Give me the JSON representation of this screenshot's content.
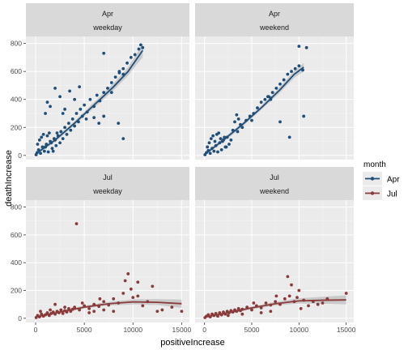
{
  "chart_data": {
    "type": "scatter",
    "xlabel": "positiveIncrease",
    "ylabel": "deathIncrease",
    "xlim": [
      -1000,
      15800
    ],
    "ylim": [
      -30,
      850
    ],
    "x_ticks": [
      0,
      5000,
      10000,
      15000
    ],
    "x_tick_labels": [
      "0",
      "5000",
      "10000",
      "15000"
    ],
    "y_ticks": [
      0,
      200,
      400,
      600,
      800
    ],
    "y_tick_labels": [
      "0",
      "200",
      "400",
      "600",
      "800"
    ],
    "grid": true,
    "legend": {
      "title": "month",
      "position": "right",
      "entries": [
        {
          "label": "Apr",
          "color": "#1f4e79"
        },
        {
          "label": "Jul",
          "color": "#8b3a3a"
        }
      ]
    },
    "panels": [
      {
        "strip_top": "Apr",
        "strip_bottom": "weekday",
        "month": "Apr",
        "color": "#1f4e79",
        "points": [
          [
            50,
            5
          ],
          [
            150,
            20
          ],
          [
            300,
            40
          ],
          [
            500,
            15
          ],
          [
            700,
            60
          ],
          [
            900,
            30
          ],
          [
            1100,
            80
          ],
          [
            1300,
            25
          ],
          [
            1500,
            100
          ],
          [
            1700,
            50
          ],
          [
            1900,
            120
          ],
          [
            2100,
            70
          ],
          [
            2300,
            140
          ],
          [
            2500,
            90
          ],
          [
            200,
            80
          ],
          [
            400,
            110
          ],
          [
            600,
            130
          ],
          [
            800,
            150
          ],
          [
            1000,
            60
          ],
          [
            1200,
            140
          ],
          [
            1400,
            160
          ],
          [
            1600,
            90
          ],
          [
            1800,
            30
          ],
          [
            2000,
            110
          ],
          [
            2200,
            160
          ],
          [
            2600,
            170
          ],
          [
            2800,
            120
          ],
          [
            3000,
            200
          ],
          [
            3200,
            150
          ],
          [
            3400,
            230
          ],
          [
            3600,
            180
          ],
          [
            3800,
            260
          ],
          [
            4000,
            210
          ],
          [
            4200,
            300
          ],
          [
            4400,
            240
          ],
          [
            4600,
            330
          ],
          [
            4800,
            280
          ],
          [
            5000,
            360
          ],
          [
            5300,
            310
          ],
          [
            5600,
            400
          ],
          [
            6000,
            350
          ],
          [
            6300,
            430
          ],
          [
            6600,
            390
          ],
          [
            7000,
            450
          ],
          [
            7400,
            480
          ],
          [
            7800,
            520
          ],
          [
            8200,
            560
          ],
          [
            8600,
            590
          ],
          [
            9000,
            620
          ],
          [
            9400,
            660
          ],
          [
            9800,
            700
          ],
          [
            10200,
            720
          ],
          [
            10600,
            760
          ],
          [
            10800,
            790
          ],
          [
            11000,
            770
          ],
          [
            1000,
            300
          ],
          [
            1500,
            350
          ],
          [
            2000,
            480
          ],
          [
            2500,
            420
          ],
          [
            3000,
            330
          ],
          [
            3500,
            460
          ],
          [
            4000,
            400
          ],
          [
            4500,
            490
          ],
          [
            6500,
            230
          ],
          [
            7000,
            280
          ],
          [
            8500,
            230
          ],
          [
            9000,
            120
          ],
          [
            7000,
            730
          ],
          [
            8600,
            600
          ],
          [
            9000,
            580
          ],
          [
            1200,
            380
          ],
          [
            2800,
            300
          ],
          [
            5200,
            260
          ],
          [
            6000,
            270
          ],
          [
            7800,
            450
          ]
        ],
        "fit": [
          [
            0,
            10
          ],
          [
            2000,
            110
          ],
          [
            4000,
            230
          ],
          [
            6000,
            360
          ],
          [
            8000,
            490
          ],
          [
            9500,
            600
          ],
          [
            10500,
            700
          ],
          [
            11000,
            750
          ]
        ],
        "band": [
          [
            0,
            0,
            25
          ],
          [
            2000,
            95,
            125
          ],
          [
            4000,
            215,
            245
          ],
          [
            6000,
            340,
            380
          ],
          [
            8000,
            465,
            515
          ],
          [
            9500,
            570,
            630
          ],
          [
            10500,
            660,
            740
          ],
          [
            11000,
            700,
            800
          ]
        ]
      },
      {
        "strip_top": "Apr",
        "strip_bottom": "weekend",
        "month": "Apr",
        "color": "#1f4e79",
        "points": [
          [
            50,
            5
          ],
          [
            200,
            20
          ],
          [
            400,
            35
          ],
          [
            600,
            15
          ],
          [
            800,
            50
          ],
          [
            1000,
            30
          ],
          [
            1200,
            70
          ],
          [
            1400,
            25
          ],
          [
            1600,
            90
          ],
          [
            1800,
            40
          ],
          [
            2000,
            110
          ],
          [
            2200,
            60
          ],
          [
            2400,
            130
          ],
          [
            2600,
            80
          ],
          [
            300,
            60
          ],
          [
            500,
            90
          ],
          [
            700,
            120
          ],
          [
            900,
            140
          ],
          [
            1100,
            100
          ],
          [
            1300,
            150
          ],
          [
            1500,
            160
          ],
          [
            1700,
            120
          ],
          [
            1900,
            100
          ],
          [
            2100,
            130
          ],
          [
            2300,
            60
          ],
          [
            2800,
            110
          ],
          [
            3000,
            180
          ],
          [
            3200,
            240
          ],
          [
            3400,
            290
          ],
          [
            3600,
            260
          ],
          [
            3800,
            220
          ],
          [
            4000,
            200
          ],
          [
            4400,
            250
          ],
          [
            4800,
            280
          ],
          [
            5200,
            300
          ],
          [
            5600,
            340
          ],
          [
            6000,
            380
          ],
          [
            6400,
            400
          ],
          [
            6800,
            420
          ],
          [
            7200,
            450
          ],
          [
            7600,
            480
          ],
          [
            8000,
            510
          ],
          [
            8400,
            540
          ],
          [
            8800,
            580
          ],
          [
            9200,
            600
          ],
          [
            9600,
            620
          ],
          [
            10000,
            640
          ],
          [
            10400,
            610
          ],
          [
            8000,
            240
          ],
          [
            9000,
            130
          ],
          [
            10500,
            280
          ],
          [
            6700,
            420
          ],
          [
            7000,
            410
          ],
          [
            3500,
            170
          ],
          [
            10000,
            780
          ],
          [
            10800,
            770
          ],
          [
            7000,
            400
          ],
          [
            5000,
            250
          ]
        ],
        "fit": [
          [
            0,
            5
          ],
          [
            2000,
            110
          ],
          [
            4000,
            220
          ],
          [
            6000,
            340
          ],
          [
            8000,
            470
          ],
          [
            9500,
            580
          ],
          [
            10500,
            630
          ]
        ],
        "band": [
          [
            0,
            0,
            20
          ],
          [
            2000,
            95,
            125
          ],
          [
            4000,
            205,
            235
          ],
          [
            6000,
            325,
            355
          ],
          [
            8000,
            450,
            490
          ],
          [
            9500,
            555,
            605
          ],
          [
            10500,
            600,
            660
          ]
        ]
      },
      {
        "strip_top": "Jul",
        "strip_bottom": "weekday",
        "month": "Jul",
        "color": "#8b3a3a",
        "points": [
          [
            50,
            5
          ],
          [
            200,
            20
          ],
          [
            400,
            10
          ],
          [
            600,
            30
          ],
          [
            800,
            15
          ],
          [
            1000,
            25
          ],
          [
            1200,
            40
          ],
          [
            1400,
            20
          ],
          [
            1600,
            35
          ],
          [
            1800,
            45
          ],
          [
            2000,
            30
          ],
          [
            2200,
            50
          ],
          [
            2400,
            40
          ],
          [
            2600,
            60
          ],
          [
            2800,
            35
          ],
          [
            3000,
            55
          ],
          [
            3200,
            45
          ],
          [
            3400,
            70
          ],
          [
            3600,
            50
          ],
          [
            3800,
            65
          ],
          [
            4000,
            80
          ],
          [
            4200,
            680
          ],
          [
            4500,
            60
          ],
          [
            5000,
            90
          ],
          [
            5500,
            70
          ],
          [
            6000,
            100
          ],
          [
            6500,
            85
          ],
          [
            7000,
            120
          ],
          [
            7500,
            95
          ],
          [
            8000,
            140
          ],
          [
            8500,
            110
          ],
          [
            9000,
            180
          ],
          [
            9200,
            270
          ],
          [
            9500,
            320
          ],
          [
            9800,
            210
          ],
          [
            10000,
            150
          ],
          [
            10500,
            160
          ],
          [
            11000,
            90
          ],
          [
            12000,
            230
          ],
          [
            12500,
            50
          ],
          [
            13000,
            60
          ],
          [
            14000,
            80
          ],
          [
            15000,
            50
          ],
          [
            5500,
            40
          ],
          [
            6000,
            50
          ],
          [
            7000,
            60
          ],
          [
            8000,
            50
          ],
          [
            3000,
            80
          ],
          [
            2000,
            100
          ],
          [
            1500,
            60
          ],
          [
            500,
            50
          ],
          [
            10500,
            260
          ],
          [
            11500,
            120
          ],
          [
            4800,
            110
          ],
          [
            6600,
            140
          ]
        ],
        "fit": [
          [
            0,
            10
          ],
          [
            2500,
            45
          ],
          [
            5000,
            80
          ],
          [
            7500,
            105
          ],
          [
            10000,
            118
          ],
          [
            12500,
            115
          ],
          [
            15000,
            105
          ]
        ],
        "band": [
          [
            0,
            0,
            20
          ],
          [
            2500,
            35,
            55
          ],
          [
            5000,
            70,
            92
          ],
          [
            7500,
            92,
            118
          ],
          [
            10000,
            100,
            136
          ],
          [
            12500,
            95,
            138
          ],
          [
            15000,
            75,
            135
          ]
        ]
      },
      {
        "strip_top": "Jul",
        "strip_bottom": "weekend",
        "month": "Jul",
        "color": "#8b3a3a",
        "points": [
          [
            50,
            5
          ],
          [
            200,
            15
          ],
          [
            400,
            25
          ],
          [
            600,
            10
          ],
          [
            800,
            30
          ],
          [
            1000,
            20
          ],
          [
            1200,
            35
          ],
          [
            1400,
            15
          ],
          [
            1600,
            40
          ],
          [
            1800,
            25
          ],
          [
            2000,
            45
          ],
          [
            2200,
            30
          ],
          [
            2400,
            50
          ],
          [
            2600,
            40
          ],
          [
            2800,
            55
          ],
          [
            3000,
            45
          ],
          [
            3200,
            60
          ],
          [
            3400,
            50
          ],
          [
            3600,
            70
          ],
          [
            3800,
            55
          ],
          [
            4000,
            65
          ],
          [
            4500,
            80
          ],
          [
            5000,
            60
          ],
          [
            5500,
            90
          ],
          [
            6000,
            75
          ],
          [
            6500,
            110
          ],
          [
            7000,
            95
          ],
          [
            7500,
            120
          ],
          [
            8000,
            100
          ],
          [
            8500,
            140
          ],
          [
            9000,
            160
          ],
          [
            9200,
            240
          ],
          [
            9500,
            120
          ],
          [
            10000,
            200
          ],
          [
            10500,
            130
          ],
          [
            11000,
            90
          ],
          [
            11500,
            120
          ],
          [
            12000,
            100
          ],
          [
            12500,
            110
          ],
          [
            13000,
            140
          ],
          [
            15000,
            180
          ],
          [
            8800,
            300
          ],
          [
            9800,
            150
          ],
          [
            10200,
            70
          ],
          [
            6000,
            40
          ],
          [
            7000,
            50
          ],
          [
            4000,
            30
          ],
          [
            2500,
            20
          ],
          [
            5200,
            110
          ],
          [
            7600,
            160
          ]
        ],
        "fit": [
          [
            0,
            8
          ],
          [
            2500,
            40
          ],
          [
            5000,
            75
          ],
          [
            7500,
            105
          ],
          [
            10000,
            125
          ],
          [
            12500,
            130
          ],
          [
            15000,
            132
          ]
        ],
        "band": [
          [
            0,
            0,
            18
          ],
          [
            2500,
            30,
            50
          ],
          [
            5000,
            65,
            85
          ],
          [
            7500,
            92,
            118
          ],
          [
            10000,
            106,
            144
          ],
          [
            12500,
            105,
            155
          ],
          [
            15000,
            100,
            165
          ]
        ]
      }
    ]
  }
}
